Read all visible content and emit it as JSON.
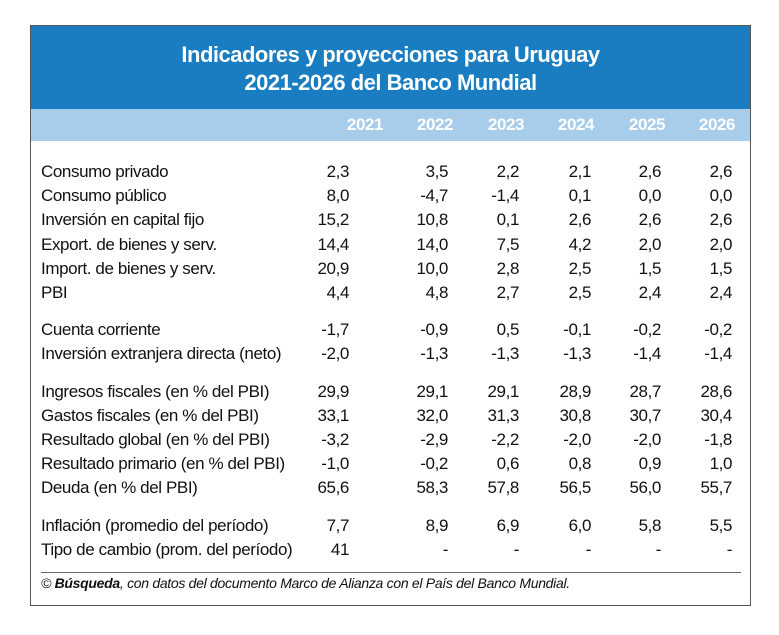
{
  "header": {
    "title_lines": [
      "Indicadores y proyecciones para Uruguay",
      "2021-2026 del Banco Mundial"
    ]
  },
  "table": {
    "columns": [
      "2021",
      "2022",
      "2023",
      "2024",
      "2025",
      "2026"
    ],
    "groups": [
      [
        {
          "label": "Consumo privado",
          "values": [
            "2,3",
            "3,5",
            "2,2",
            "2,1",
            "2,6",
            "2,6"
          ]
        },
        {
          "label": "Consumo público",
          "values": [
            "8,0",
            "-4,7",
            "-1,4",
            "0,1",
            "0,0",
            "0,0"
          ]
        },
        {
          "label": "Inversión en capital fijo",
          "values": [
            "15,2",
            "10,8",
            "0,1",
            "2,6",
            "2,6",
            "2,6"
          ]
        },
        {
          "label": "Export. de bienes y serv.",
          "values": [
            "14,4",
            "14,0",
            "7,5",
            "4,2",
            "2,0",
            "2,0"
          ]
        },
        {
          "label": "Import. de bienes y serv.",
          "values": [
            "20,9",
            "10,0",
            "2,8",
            "2,5",
            "1,5",
            "1,5"
          ]
        },
        {
          "label": "PBI",
          "values": [
            "4,4",
            "4,8",
            "2,7",
            "2,5",
            "2,4",
            "2,4"
          ]
        }
      ],
      [
        {
          "label": "Cuenta corriente",
          "values": [
            "-1,7",
            "-0,9",
            "0,5",
            "-0,1",
            "-0,2",
            "-0,2"
          ]
        },
        {
          "label": "Inversión extranjera directa (neto)",
          "values": [
            "-2,0",
            "-1,3",
            "-1,3",
            "-1,3",
            "-1,4",
            "-1,4"
          ]
        }
      ],
      [
        {
          "label": "Ingresos fiscales (en % del PBI)",
          "values": [
            "29,9",
            "29,1",
            "29,1",
            "28,9",
            "28,7",
            "28,6"
          ]
        },
        {
          "label": "Gastos fiscales (en % del PBI)",
          "values": [
            "33,1",
            "32,0",
            "31,3",
            "30,8",
            "30,7",
            "30,4"
          ]
        },
        {
          "label": "Resultado global (en % del PBI)",
          "values": [
            "-3,2",
            "-2,9",
            "-2,2",
            "-2,0",
            "-2,0",
            "-1,8"
          ]
        },
        {
          "label": "Resultado primario (en % del PBI)",
          "values": [
            "-1,0",
            "-0,2",
            "0,6",
            "0,8",
            "0,9",
            "1,0"
          ]
        },
        {
          "label": "Deuda (en % del PBI)",
          "values": [
            "65,6",
            "58,3",
            "57,8",
            "56,5",
            "56,0",
            "55,7"
          ]
        }
      ],
      [
        {
          "label": "Inflación (promedio del período)",
          "values": [
            "7,7",
            "8,9",
            "6,9",
            "6,0",
            "5,8",
            "5,5"
          ]
        },
        {
          "label": "Tipo de cambio (prom. del período)",
          "values": [
            "41",
            "-",
            "-",
            "-",
            "-",
            "-"
          ]
        }
      ]
    ]
  },
  "footer": {
    "prefix": "©",
    "brand": "Búsqueda",
    "text": ", con datos del documento Marco de Alianza con el País del Banco Mundial."
  }
}
